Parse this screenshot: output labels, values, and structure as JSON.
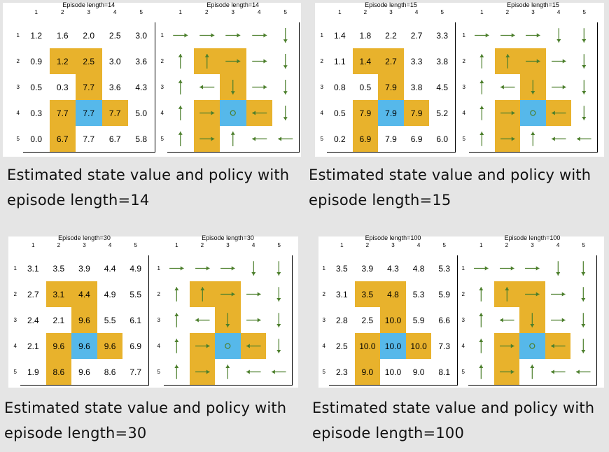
{
  "colors": {
    "forbidden": "#e8b22c",
    "target": "#56b8ea",
    "arrow": "#4c7f2c",
    "background": "#e5e5e5"
  },
  "cell_types": [
    [
      "n",
      "n",
      "n",
      "n",
      "n"
    ],
    [
      "n",
      "f",
      "f",
      "n",
      "n"
    ],
    [
      "n",
      "n",
      "f",
      "n",
      "n"
    ],
    [
      "n",
      "f",
      "t",
      "f",
      "n"
    ],
    [
      "n",
      "f",
      "n",
      "n",
      "n"
    ]
  ],
  "figures": [
    {
      "grid_title": "Episode length=14",
      "caption_line1": "Estimated state value and policy with",
      "caption_line2": "episode length=14",
      "values": [
        [
          "1.2",
          "1.6",
          "2.0",
          "2.5",
          "3.0"
        ],
        [
          "0.9",
          "1.2",
          "2.5",
          "3.0",
          "3.6"
        ],
        [
          "0.5",
          "0.3",
          "7.7",
          "3.6",
          "4.3"
        ],
        [
          "0.3",
          "7.7",
          "7.7",
          "7.7",
          "5.0"
        ],
        [
          "0.0",
          "6.7",
          "7.7",
          "6.7",
          "5.8"
        ]
      ],
      "policy": [
        [
          "right",
          "right",
          "right",
          "right",
          "down"
        ],
        [
          "up",
          "up",
          "right",
          "right",
          "down"
        ],
        [
          "up",
          "left",
          "down",
          "right",
          "down"
        ],
        [
          "up",
          "right",
          "stay",
          "left",
          "down"
        ],
        [
          "up",
          "right",
          "up",
          "left",
          "left"
        ]
      ]
    },
    {
      "grid_title": "Episode length=15",
      "caption_line1": "Estimated state value and policy with",
      "caption_line2": "episode length=15",
      "values": [
        [
          "1.4",
          "1.8",
          "2.2",
          "2.7",
          "3.3"
        ],
        [
          "1.1",
          "1.4",
          "2.7",
          "3.3",
          "3.8"
        ],
        [
          "0.8",
          "0.5",
          "7.9",
          "3.8",
          "4.5"
        ],
        [
          "0.5",
          "7.9",
          "7.9",
          "7.9",
          "5.2"
        ],
        [
          "0.2",
          "6.9",
          "7.9",
          "6.9",
          "6.0"
        ]
      ],
      "policy": [
        [
          "right",
          "right",
          "right",
          "down",
          "down"
        ],
        [
          "up",
          "up",
          "right",
          "right",
          "down"
        ],
        [
          "up",
          "left",
          "down",
          "right",
          "down"
        ],
        [
          "up",
          "right",
          "stay",
          "left",
          "down"
        ],
        [
          "up",
          "right",
          "up",
          "left",
          "left"
        ]
      ]
    },
    {
      "grid_title": "Episode length=30",
      "caption_line1": "Estimated state value and policy with",
      "caption_line2": "episode length=30",
      "values": [
        [
          "3.1",
          "3.5",
          "3.9",
          "4.4",
          "4.9"
        ],
        [
          "2.7",
          "3.1",
          "4.4",
          "4.9",
          "5.5"
        ],
        [
          "2.4",
          "2.1",
          "9.6",
          "5.5",
          "6.1"
        ],
        [
          "2.1",
          "9.6",
          "9.6",
          "9.6",
          "6.9"
        ],
        [
          "1.9",
          "8.6",
          "9.6",
          "8.6",
          "7.7"
        ]
      ],
      "policy": [
        [
          "right",
          "right",
          "right",
          "down",
          "down"
        ],
        [
          "up",
          "up",
          "right",
          "right",
          "down"
        ],
        [
          "up",
          "left",
          "down",
          "right",
          "down"
        ],
        [
          "up",
          "right",
          "stay",
          "left",
          "down"
        ],
        [
          "up",
          "right",
          "up",
          "left",
          "left"
        ]
      ]
    },
    {
      "grid_title": "Episode length=100",
      "caption_line1": "Estimated state value and policy with",
      "caption_line2": "episode length=100",
      "values": [
        [
          "3.5",
          "3.9",
          "4.3",
          "4.8",
          "5.3"
        ],
        [
          "3.1",
          "3.5",
          "4.8",
          "5.3",
          "5.9"
        ],
        [
          "2.8",
          "2.5",
          "10.0",
          "5.9",
          "6.6"
        ],
        [
          "2.5",
          "10.0",
          "10.0",
          "10.0",
          "7.3"
        ],
        [
          "2.3",
          "9.0",
          "10.0",
          "9.0",
          "8.1"
        ]
      ],
      "policy": [
        [
          "right",
          "right",
          "right",
          "down",
          "down"
        ],
        [
          "up",
          "up",
          "right",
          "right",
          "down"
        ],
        [
          "up",
          "left",
          "down",
          "right",
          "down"
        ],
        [
          "up",
          "right",
          "stay",
          "left",
          "down"
        ],
        [
          "up",
          "right",
          "up",
          "left",
          "left"
        ]
      ]
    }
  ],
  "axis_numbers": [
    "1",
    "2",
    "3",
    "4",
    "5"
  ]
}
